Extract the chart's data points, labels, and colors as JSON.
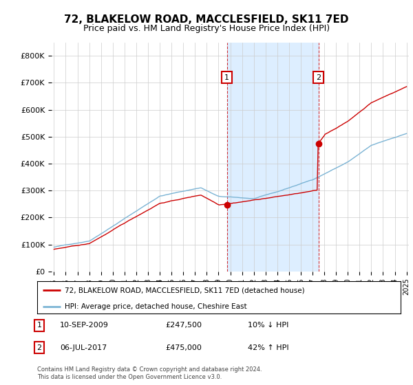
{
  "title": "72, BLAKELOW ROAD, MACCLESFIELD, SK11 7ED",
  "subtitle": "Price paid vs. HM Land Registry's House Price Index (HPI)",
  "title_fontsize": 11,
  "subtitle_fontsize": 9,
  "ylabel_ticks": [
    "£0",
    "£100K",
    "£200K",
    "£300K",
    "£400K",
    "£500K",
    "£600K",
    "£700K",
    "£800K"
  ],
  "ytick_values": [
    0,
    100000,
    200000,
    300000,
    400000,
    500000,
    600000,
    700000,
    800000
  ],
  "ylim": [
    0,
    850000
  ],
  "xlim_start": 1994.8,
  "xlim_end": 2025.2,
  "hpi_color": "#7ab3d4",
  "price_color": "#cc0000",
  "marker1_date": 2009.72,
  "marker1_price": 247500,
  "marker2_date": 2017.51,
  "marker2_price": 475000,
  "legend_label1": "72, BLAKELOW ROAD, MACCLESFIELD, SK11 7ED (detached house)",
  "legend_label2": "HPI: Average price, detached house, Cheshire East",
  "grid_color": "#cccccc",
  "background_color": "#ffffff",
  "plot_bg_color": "#ffffff",
  "shade_color": "#ddeeff",
  "footnote": "Contains HM Land Registry data © Crown copyright and database right 2024.\nThis data is licensed under the Open Government Licence v3.0."
}
